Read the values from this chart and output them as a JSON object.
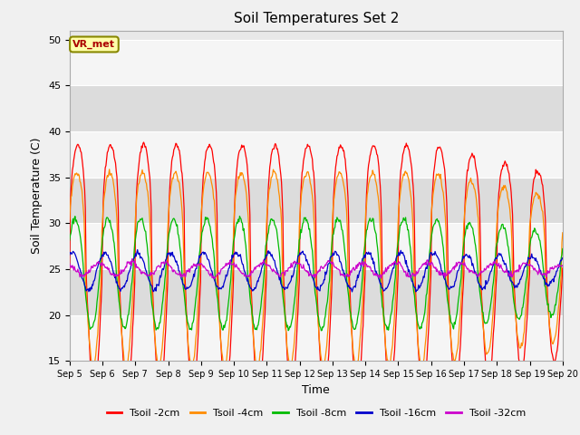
{
  "title": "Soil Temperatures Set 2",
  "xlabel": "Time",
  "ylabel": "Soil Temperature (C)",
  "ylim": [
    15,
    51
  ],
  "yticks": [
    15,
    20,
    25,
    30,
    35,
    40,
    45,
    50
  ],
  "xtick_labels": [
    "Sep 5",
    "Sep 6",
    "Sep 7",
    "Sep 8",
    "Sep 9",
    "Sep 10",
    "Sep 11",
    "Sep 12",
    "Sep 13",
    "Sep 14",
    "Sep 15",
    "Sep 16",
    "Sep 17",
    "Sep 18",
    "Sep 19",
    "Sep 20"
  ],
  "series": [
    {
      "label": "Tsoil -2cm",
      "color": "#ff0000",
      "depth": 2
    },
    {
      "label": "Tsoil -4cm",
      "color": "#ff8c00",
      "depth": 4
    },
    {
      "label": "Tsoil -8cm",
      "color": "#00bb00",
      "depth": 8
    },
    {
      "label": "Tsoil -16cm",
      "color": "#0000cc",
      "depth": 16
    },
    {
      "label": "Tsoil -32cm",
      "color": "#cc00cc",
      "depth": 32
    }
  ],
  "annotation_text": "VR_met",
  "annotation_color": "#aa0000",
  "annotation_bg": "#ffffaa",
  "annotation_border": "#888800",
  "plot_bg": "#e8e8e8",
  "fig_bg": "#f0f0f0",
  "grid_color": "#ffffff",
  "figsize": [
    6.4,
    4.8
  ],
  "dpi": 100,
  "depth_params": {
    "2": {
      "base": 25.0,
      "amp": 13.5,
      "phase": 0.0,
      "skew": 3.0
    },
    "4": {
      "base": 25.0,
      "amp": 10.5,
      "phase": 0.2,
      "skew": 2.5
    },
    "8": {
      "base": 24.5,
      "amp": 6.0,
      "phase": 0.5,
      "skew": 1.5
    },
    "16": {
      "base": 24.8,
      "amp": 2.0,
      "phase": 1.1,
      "skew": 1.0
    },
    "32": {
      "base": 25.0,
      "amp": 0.7,
      "phase": 2.2,
      "skew": 1.0
    }
  }
}
